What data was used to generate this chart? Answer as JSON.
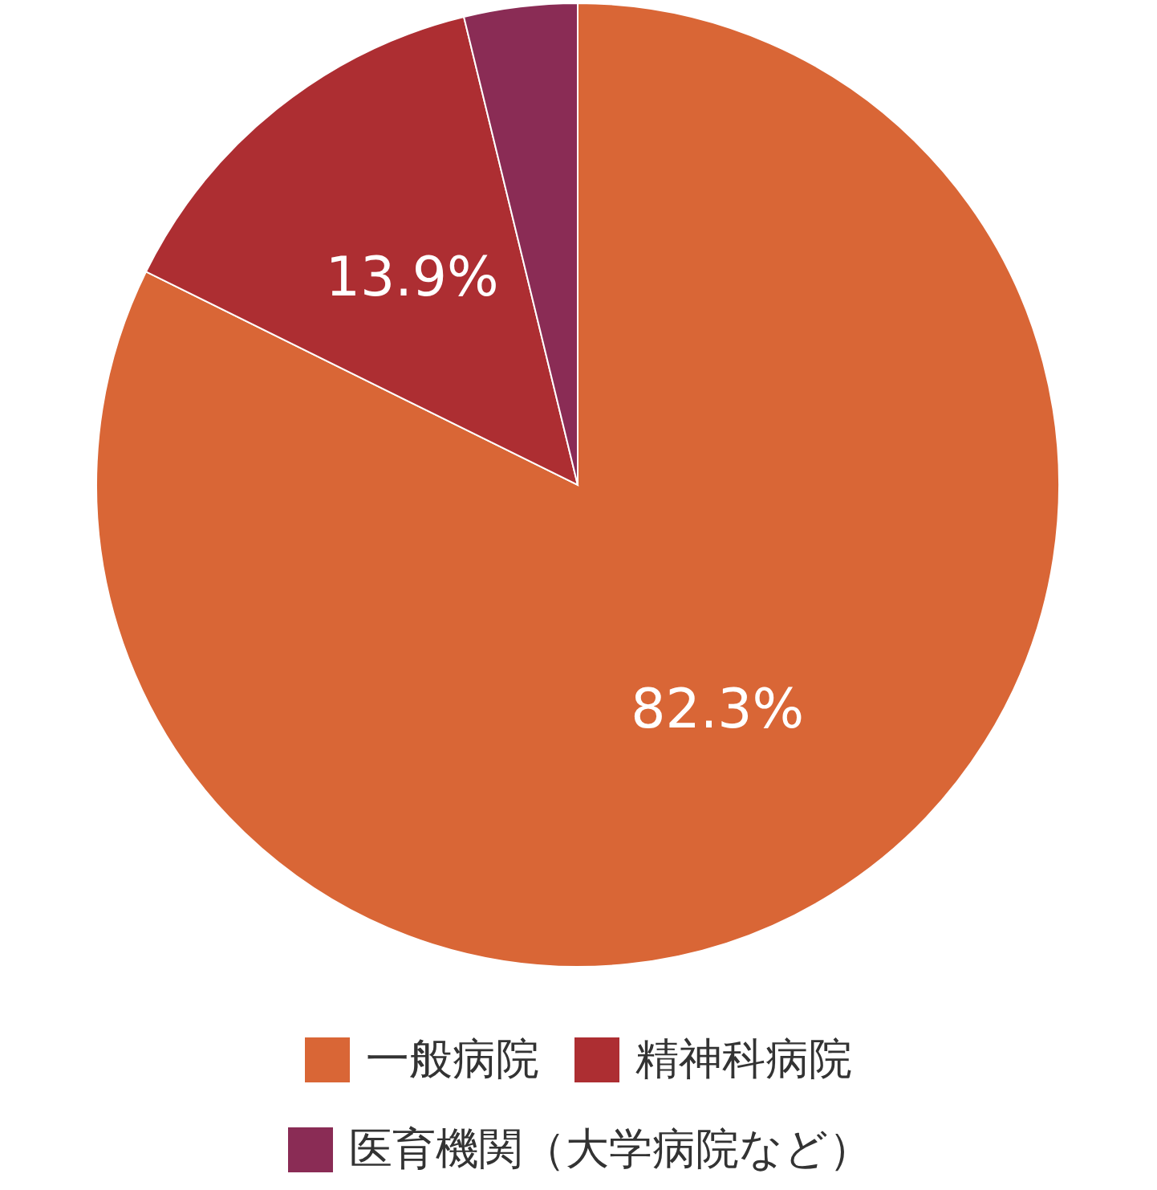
{
  "chart_data": {
    "type": "pie",
    "categories": [
      "一般病院",
      "精神科病院",
      "医育機関（大学病院など）"
    ],
    "values": [
      82.3,
      13.9,
      3.8
    ],
    "colors": [
      "#d96636",
      "#ad2e32",
      "#8a2c55"
    ],
    "value_labels": [
      "82.3%",
      "13.9%",
      null
    ],
    "legend": "bottom"
  }
}
